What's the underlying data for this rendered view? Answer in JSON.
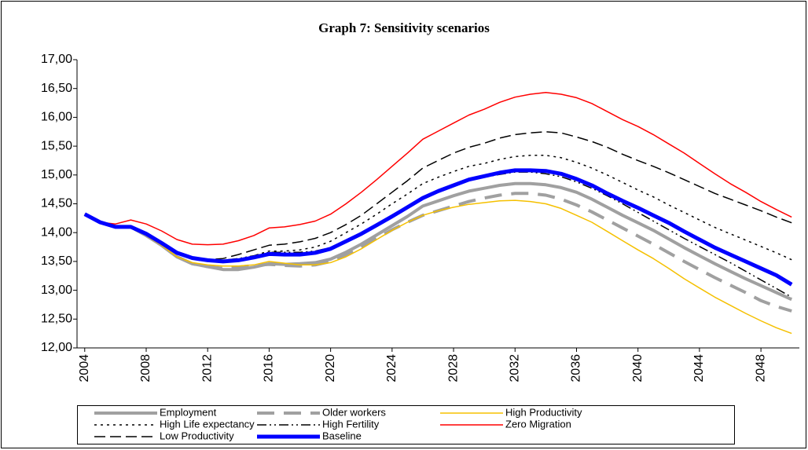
{
  "chart_data": {
    "type": "line",
    "title": "Graph 7: Sensitivity scenarios",
    "x": [
      2004,
      2005,
      2006,
      2007,
      2008,
      2009,
      2010,
      2011,
      2012,
      2013,
      2014,
      2015,
      2016,
      2017,
      2018,
      2019,
      2020,
      2021,
      2022,
      2023,
      2024,
      2025,
      2026,
      2027,
      2028,
      2029,
      2030,
      2031,
      2032,
      2033,
      2034,
      2035,
      2036,
      2037,
      2038,
      2039,
      2040,
      2041,
      2042,
      2043,
      2044,
      2045,
      2046,
      2047,
      2048,
      2049,
      2050
    ],
    "xlim": [
      2003.5,
      2050.5
    ],
    "xticks": [
      2004,
      2008,
      2012,
      2016,
      2020,
      2024,
      2028,
      2032,
      2036,
      2040,
      2044,
      2048
    ],
    "ylim": [
      12,
      17
    ],
    "yticks": [
      {
        "value": 12,
        "label": "12,00"
      },
      {
        "value": 12.5,
        "label": "12,50"
      },
      {
        "value": 13,
        "label": "13,00"
      },
      {
        "value": 13.5,
        "label": "13,50"
      },
      {
        "value": 14,
        "label": "14,00"
      },
      {
        "value": 14.5,
        "label": "14,50"
      },
      {
        "value": 15,
        "label": "15,00"
      },
      {
        "value": 15.5,
        "label": "15,50"
      },
      {
        "value": 16,
        "label": "16,00"
      },
      {
        "value": 16.5,
        "label": "16,50"
      },
      {
        "value": 17,
        "label": "17,00"
      }
    ],
    "grid": false,
    "legend": "bottom",
    "series": [
      {
        "name": "Employment",
        "color": "#a0a0a0",
        "style": "solid",
        "weight": "thick",
        "values": [
          14.32,
          14.18,
          14.1,
          14.1,
          13.95,
          13.78,
          13.58,
          13.46,
          13.41,
          13.36,
          13.36,
          13.4,
          13.46,
          13.45,
          13.46,
          13.48,
          13.54,
          13.66,
          13.8,
          13.96,
          14.12,
          14.28,
          14.46,
          14.55,
          14.64,
          14.72,
          14.77,
          14.82,
          14.85,
          14.85,
          14.83,
          14.78,
          14.7,
          14.58,
          14.44,
          14.3,
          14.17,
          14.04,
          13.89,
          13.74,
          13.6,
          13.46,
          13.33,
          13.2,
          13.08,
          12.96,
          12.84
        ]
      },
      {
        "name": "Older workers",
        "color": "#a0a0a0",
        "style": "longdash",
        "weight": "thick",
        "values": [
          14.32,
          14.18,
          14.1,
          14.1,
          13.95,
          13.78,
          13.58,
          13.46,
          13.41,
          13.38,
          13.4,
          13.43,
          13.45,
          13.43,
          13.42,
          13.44,
          13.5,
          13.62,
          13.76,
          13.9,
          14.05,
          14.18,
          14.3,
          14.38,
          14.46,
          14.54,
          14.6,
          14.65,
          14.68,
          14.68,
          14.65,
          14.58,
          14.48,
          14.36,
          14.22,
          14.08,
          13.94,
          13.8,
          13.65,
          13.5,
          13.36,
          13.22,
          13.09,
          12.96,
          12.82,
          12.72,
          12.64
        ]
      },
      {
        "name": "High Productivity",
        "color": "#f5c000",
        "style": "solid",
        "weight": "thin",
        "values": [
          14.32,
          14.18,
          14.1,
          14.1,
          13.95,
          13.78,
          13.58,
          13.48,
          13.44,
          13.42,
          13.42,
          13.44,
          13.5,
          13.47,
          13.44,
          13.44,
          13.48,
          13.58,
          13.72,
          13.88,
          14.04,
          14.18,
          14.3,
          14.38,
          14.44,
          14.49,
          14.52,
          14.55,
          14.56,
          14.54,
          14.5,
          14.42,
          14.3,
          14.18,
          14.02,
          13.86,
          13.7,
          13.55,
          13.38,
          13.2,
          13.04,
          12.88,
          12.74,
          12.6,
          12.47,
          12.35,
          12.25
        ]
      },
      {
        "name": "High Life expectancy",
        "color": "#000000",
        "style": "dotted",
        "weight": "thin",
        "values": [
          14.32,
          14.18,
          14.1,
          14.1,
          13.98,
          13.82,
          13.65,
          13.56,
          13.52,
          13.5,
          13.54,
          13.6,
          13.68,
          13.68,
          13.7,
          13.75,
          13.85,
          14.0,
          14.15,
          14.32,
          14.5,
          14.67,
          14.85,
          14.96,
          15.06,
          15.15,
          15.2,
          15.27,
          15.32,
          15.34,
          15.34,
          15.3,
          15.22,
          15.12,
          15.0,
          14.87,
          14.74,
          14.62,
          14.48,
          14.35,
          14.22,
          14.09,
          13.98,
          13.87,
          13.76,
          13.65,
          13.53
        ]
      },
      {
        "name": "High Fertility",
        "color": "#000000",
        "style": "dashdot",
        "weight": "thin",
        "values": [
          14.32,
          14.18,
          14.1,
          14.1,
          13.98,
          13.82,
          13.65,
          13.56,
          13.52,
          13.52,
          13.55,
          13.6,
          13.66,
          13.66,
          13.66,
          13.68,
          13.74,
          13.86,
          14.0,
          14.14,
          14.3,
          14.45,
          14.6,
          14.72,
          14.82,
          14.9,
          14.96,
          15.01,
          15.05,
          15.05,
          15.02,
          14.97,
          14.88,
          14.77,
          14.64,
          14.5,
          14.35,
          14.2,
          14.05,
          13.9,
          13.76,
          13.62,
          13.48,
          13.33,
          13.18,
          13.03,
          12.88
        ]
      },
      {
        "name": "Zero Migration",
        "color": "#ff0000",
        "style": "solid",
        "weight": "thin",
        "values": [
          14.32,
          14.18,
          14.15,
          14.22,
          14.15,
          14.03,
          13.88,
          13.8,
          13.79,
          13.8,
          13.86,
          13.95,
          14.08,
          14.1,
          14.14,
          14.2,
          14.32,
          14.5,
          14.7,
          14.92,
          15.15,
          15.38,
          15.62,
          15.76,
          15.9,
          16.04,
          16.14,
          16.26,
          16.35,
          16.4,
          16.43,
          16.4,
          16.34,
          16.24,
          16.1,
          15.96,
          15.84,
          15.7,
          15.54,
          15.38,
          15.2,
          15.02,
          14.85,
          14.7,
          14.54,
          14.4,
          14.27
        ]
      },
      {
        "name": "Low Productivity",
        "color": "#000000",
        "style": "dashed",
        "weight": "thin",
        "values": [
          14.32,
          14.18,
          14.1,
          14.1,
          13.98,
          13.82,
          13.65,
          13.56,
          13.53,
          13.55,
          13.62,
          13.7,
          13.78,
          13.8,
          13.84,
          13.9,
          14.0,
          14.14,
          14.3,
          14.5,
          14.7,
          14.9,
          15.12,
          15.25,
          15.38,
          15.48,
          15.55,
          15.64,
          15.7,
          15.73,
          15.75,
          15.73,
          15.66,
          15.58,
          15.48,
          15.36,
          15.25,
          15.15,
          15.04,
          14.92,
          14.8,
          14.68,
          14.58,
          14.48,
          14.38,
          14.27,
          14.17
        ]
      },
      {
        "name": "Baseline",
        "color": "#0000ff",
        "style": "solid",
        "weight": "heavy",
        "values": [
          14.32,
          14.18,
          14.1,
          14.1,
          13.98,
          13.82,
          13.65,
          13.56,
          13.52,
          13.5,
          13.52,
          13.57,
          13.63,
          13.62,
          13.62,
          13.65,
          13.72,
          13.85,
          13.98,
          14.13,
          14.28,
          14.44,
          14.6,
          14.72,
          14.82,
          14.92,
          14.98,
          15.04,
          15.08,
          15.08,
          15.07,
          15.02,
          14.93,
          14.82,
          14.68,
          14.55,
          14.43,
          14.3,
          14.17,
          14.02,
          13.88,
          13.74,
          13.62,
          13.5,
          13.38,
          13.26,
          13.1
        ]
      }
    ]
  }
}
